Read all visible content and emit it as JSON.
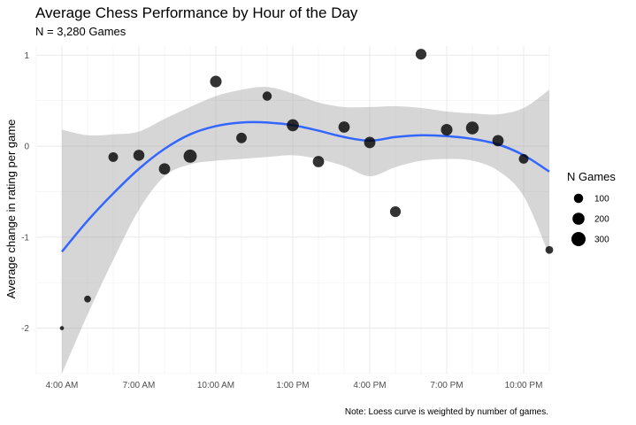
{
  "chart_data": {
    "type": "scatter",
    "title": "Average Chess Performance by Hour of the Day",
    "subtitle": "N = 3,280 Games",
    "xlabel": "",
    "ylabel": "Average change in rating per game",
    "caption": "Note: Loess curve is weighted by number of games.",
    "x_tick_labels": [
      "4:00 AM",
      "7:00 AM",
      "10:00 AM",
      "1:00 PM",
      "4:00 PM",
      "7:00 PM",
      "10:00 PM"
    ],
    "x_tick_values": [
      4,
      7,
      10,
      13,
      16,
      19,
      22
    ],
    "y_tick_labels": [
      "-2",
      "-1",
      "0",
      "1"
    ],
    "y_tick_values": [
      -2,
      -1,
      0,
      1
    ],
    "xlim": [
      3,
      23
    ],
    "ylim": [
      -2.5,
      1.1
    ],
    "grid": true,
    "legend_placement": "right",
    "legend": {
      "title": "N Games",
      "entries": [
        {
          "label": "100",
          "value": 100
        },
        {
          "label": "200",
          "value": 200
        },
        {
          "label": "300",
          "value": 300
        }
      ]
    },
    "points": [
      {
        "hour": 4,
        "y": -2.0,
        "n": 5
      },
      {
        "hour": 5,
        "y": -1.68,
        "n": 40
      },
      {
        "hour": 6,
        "y": -0.12,
        "n": 110
      },
      {
        "hour": 7,
        "y": -0.1,
        "n": 160
      },
      {
        "hour": 8,
        "y": -0.25,
        "n": 170
      },
      {
        "hour": 9,
        "y": -0.11,
        "n": 250
      },
      {
        "hour": 10,
        "y": 0.71,
        "n": 180
      },
      {
        "hour": 11,
        "y": 0.09,
        "n": 140
      },
      {
        "hour": 12,
        "y": 0.55,
        "n": 100
      },
      {
        "hour": 13,
        "y": 0.23,
        "n": 200
      },
      {
        "hour": 14,
        "y": -0.17,
        "n": 170
      },
      {
        "hour": 15,
        "y": 0.21,
        "n": 170
      },
      {
        "hour": 16,
        "y": 0.04,
        "n": 170
      },
      {
        "hour": 17,
        "y": -0.72,
        "n": 150
      },
      {
        "hour": 18,
        "y": 1.01,
        "n": 150
      },
      {
        "hour": 19,
        "y": 0.18,
        "n": 180
      },
      {
        "hour": 20,
        "y": 0.2,
        "n": 230
      },
      {
        "hour": 21,
        "y": 0.06,
        "n": 170
      },
      {
        "hour": 22,
        "y": -0.14,
        "n": 110
      },
      {
        "hour": 23,
        "y": -1.14,
        "n": 60
      }
    ],
    "loess": {
      "color": "#3366FF",
      "x": [
        4,
        5,
        6,
        7,
        8,
        9,
        10,
        11,
        12,
        13,
        14,
        15,
        16,
        17,
        18,
        19,
        20,
        21,
        22,
        23
      ],
      "y": [
        -1.16,
        -0.82,
        -0.52,
        -0.25,
        -0.03,
        0.13,
        0.22,
        0.26,
        0.26,
        0.23,
        0.17,
        0.1,
        0.06,
        0.1,
        0.12,
        0.11,
        0.08,
        0.02,
        -0.1,
        -0.28
      ],
      "lower": [
        -2.5,
        -1.85,
        -1.25,
        -0.7,
        -0.33,
        -0.2,
        -0.16,
        -0.14,
        -0.12,
        -0.1,
        -0.14,
        -0.22,
        -0.33,
        -0.23,
        -0.16,
        -0.14,
        -0.16,
        -0.27,
        -0.55,
        -1.2
      ],
      "upper": [
        0.18,
        0.12,
        0.13,
        0.16,
        0.3,
        0.43,
        0.55,
        0.62,
        0.65,
        0.58,
        0.48,
        0.43,
        0.43,
        0.44,
        0.42,
        0.38,
        0.36,
        0.35,
        0.42,
        0.62
      ]
    }
  }
}
